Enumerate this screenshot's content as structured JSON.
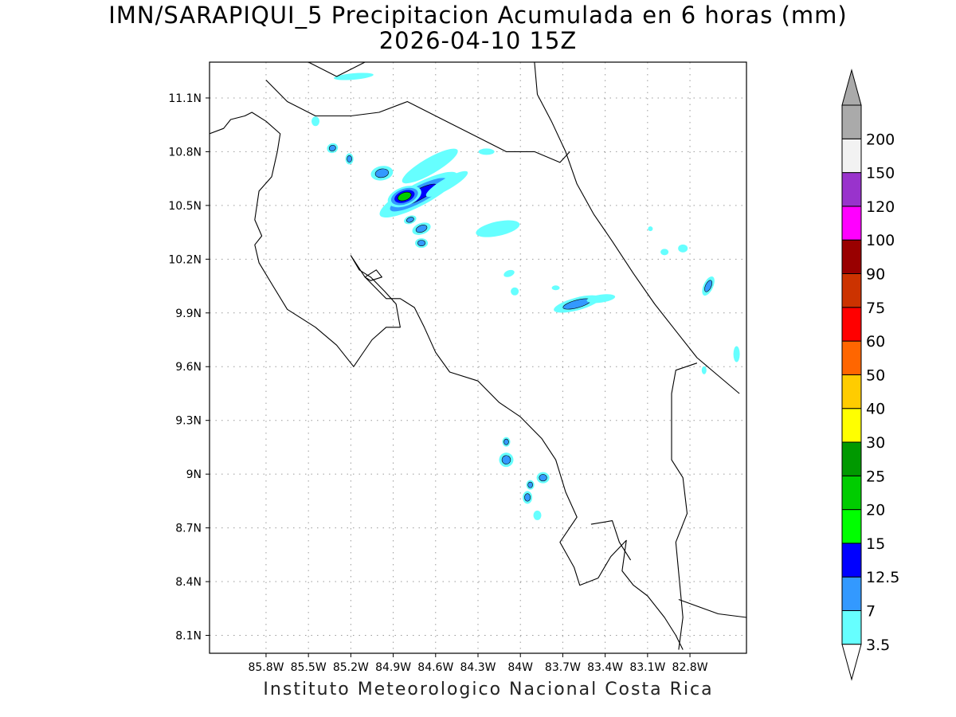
{
  "title": {
    "line1": "IMN/SARAPIQUI_5 Precipitacion Acumulada en 6 horas (mm)",
    "line2": "2026-04-10 15Z"
  },
  "credit": "Instituto Meteorologico Nacional Costa Rica",
  "map": {
    "lon_range": [
      -86.2,
      -82.4
    ],
    "lat_range": [
      8.0,
      11.3
    ],
    "x_ticks": [
      {
        "value": -85.8,
        "label": "85.8W"
      },
      {
        "value": -85.5,
        "label": "85.5W"
      },
      {
        "value": -85.2,
        "label": "85.2W"
      },
      {
        "value": -84.9,
        "label": "84.9W"
      },
      {
        "value": -84.6,
        "label": "84.6W"
      },
      {
        "value": -84.3,
        "label": "84.3W"
      },
      {
        "value": -84.0,
        "label": "84W"
      },
      {
        "value": -83.7,
        "label": "83.7W"
      },
      {
        "value": -83.4,
        "label": "83.4W"
      },
      {
        "value": -83.1,
        "label": "83.1W"
      },
      {
        "value": -82.8,
        "label": "82.8W"
      }
    ],
    "y_ticks": [
      {
        "value": 11.1,
        "label": "11.1N"
      },
      {
        "value": 10.8,
        "label": "10.8N"
      },
      {
        "value": 10.5,
        "label": "10.5N"
      },
      {
        "value": 10.2,
        "label": "10.2N"
      },
      {
        "value": 9.9,
        "label": "9.9N"
      },
      {
        "value": 9.6,
        "label": "9.6N"
      },
      {
        "value": 9.3,
        "label": "9.3N"
      },
      {
        "value": 9.0,
        "label": "9N"
      },
      {
        "value": 8.7,
        "label": "8.7N"
      },
      {
        "value": 8.4,
        "label": "8.4N"
      },
      {
        "value": 8.1,
        "label": "8.1N"
      }
    ],
    "grid": true,
    "coastline": [
      [
        -86.2,
        10.9
      ],
      [
        -86.1,
        10.93
      ],
      [
        -86.05,
        10.98
      ],
      [
        -85.95,
        11.0
      ],
      [
        -85.9,
        11.02
      ],
      [
        -85.8,
        10.97
      ],
      [
        -85.7,
        10.9
      ],
      [
        -85.72,
        10.8
      ],
      [
        -85.76,
        10.66
      ],
      [
        -85.85,
        10.58
      ],
      [
        -85.88,
        10.42
      ],
      [
        -85.83,
        10.33
      ],
      [
        -85.88,
        10.28
      ],
      [
        -85.85,
        10.18
      ],
      [
        -85.75,
        10.05
      ],
      [
        -85.65,
        9.92
      ],
      [
        -85.45,
        9.82
      ],
      [
        -85.3,
        9.72
      ],
      [
        -85.18,
        9.6
      ],
      [
        -85.12,
        9.67
      ],
      [
        -85.05,
        9.75
      ],
      [
        -84.95,
        9.82
      ],
      [
        -84.85,
        9.82
      ],
      [
        -84.88,
        9.95
      ],
      [
        -84.96,
        10.02
      ],
      [
        -85.06,
        10.1
      ],
      [
        -85.14,
        10.14
      ],
      [
        -85.2,
        10.22
      ],
      [
        -85.1,
        10.1
      ],
      [
        -84.95,
        9.98
      ],
      [
        -84.85,
        9.98
      ],
      [
        -84.75,
        9.93
      ],
      [
        -84.68,
        9.82
      ],
      [
        -84.6,
        9.68
      ],
      [
        -84.5,
        9.57
      ],
      [
        -84.3,
        9.52
      ],
      [
        -84.15,
        9.4
      ],
      [
        -84.0,
        9.32
      ],
      [
        -83.85,
        9.2
      ],
      [
        -83.75,
        9.08
      ],
      [
        -83.68,
        8.9
      ],
      [
        -83.6,
        8.76
      ],
      [
        -83.72,
        8.62
      ],
      [
        -83.62,
        8.48
      ],
      [
        -83.58,
        8.38
      ],
      [
        -83.45,
        8.42
      ],
      [
        -83.36,
        8.54
      ],
      [
        -83.25,
        8.63
      ],
      [
        -83.28,
        8.46
      ],
      [
        -83.2,
        8.38
      ],
      [
        -83.1,
        8.32
      ],
      [
        -82.98,
        8.2
      ],
      [
        -82.9,
        8.1
      ],
      [
        -82.85,
        8.02
      ]
    ],
    "border_north": [
      [
        -85.8,
        11.2
      ],
      [
        -85.65,
        11.08
      ],
      [
        -85.45,
        11.0
      ],
      [
        -85.2,
        11.0
      ],
      [
        -85.0,
        11.02
      ],
      [
        -84.8,
        11.08
      ],
      [
        -84.55,
        10.98
      ],
      [
        -84.3,
        10.88
      ],
      [
        -84.1,
        10.8
      ],
      [
        -83.9,
        10.8
      ],
      [
        -83.72,
        10.74
      ],
      [
        -83.65,
        10.8
      ]
    ],
    "lake_shore": [
      [
        -85.5,
        11.3
      ],
      [
        -85.3,
        11.22
      ],
      [
        -85.1,
        11.3
      ]
    ],
    "coast_caribbean": [
      [
        -83.9,
        11.3
      ],
      [
        -83.88,
        11.12
      ],
      [
        -83.78,
        10.97
      ],
      [
        -83.68,
        10.8
      ],
      [
        -83.6,
        10.62
      ],
      [
        -83.48,
        10.45
      ],
      [
        -83.35,
        10.3
      ],
      [
        -83.2,
        10.12
      ],
      [
        -83.05,
        9.95
      ],
      [
        -82.9,
        9.8
      ],
      [
        -82.75,
        9.65
      ],
      [
        -82.6,
        9.55
      ],
      [
        -82.45,
        9.45
      ]
    ],
    "border_south": [
      [
        -82.75,
        9.62
      ],
      [
        -82.9,
        9.58
      ],
      [
        -82.93,
        9.45
      ],
      [
        -82.93,
        9.08
      ],
      [
        -82.85,
        8.98
      ],
      [
        -82.82,
        8.78
      ],
      [
        -82.9,
        8.62
      ],
      [
        -82.88,
        8.45
      ],
      [
        -82.85,
        8.2
      ],
      [
        -82.88,
        8.02
      ]
    ],
    "panama_coast": [
      [
        -82.88,
        8.3
      ],
      [
        -82.6,
        8.22
      ],
      [
        -82.4,
        8.2
      ]
    ],
    "osa_bay": [
      [
        -83.5,
        8.72
      ],
      [
        -83.35,
        8.74
      ],
      [
        -83.3,
        8.62
      ],
      [
        -83.22,
        8.52
      ]
    ],
    "island": [
      [
        -85.1,
        10.1
      ],
      [
        -85.02,
        10.14
      ],
      [
        -84.98,
        10.1
      ],
      [
        -85.06,
        10.08
      ],
      [
        -85.1,
        10.1
      ]
    ],
    "cells": [
      {
        "lon": -84.72,
        "lat": 10.56,
        "rx": 55,
        "ry": 14,
        "angle": -28,
        "levels": [
          3.5,
          7,
          12.5
        ]
      },
      {
        "lon": -84.82,
        "lat": 10.55,
        "rx": 22,
        "ry": 12,
        "angle": -20,
        "levels": [
          3.5,
          7,
          12.5,
          20
        ]
      },
      {
        "lon": -84.64,
        "lat": 10.72,
        "rx": 40,
        "ry": 10,
        "angle": -30,
        "levels": [
          3.5
        ]
      },
      {
        "lon": -84.52,
        "lat": 10.62,
        "rx": 30,
        "ry": 7,
        "angle": -30,
        "levels": [
          3.5
        ]
      },
      {
        "lon": -84.98,
        "lat": 10.68,
        "rx": 14,
        "ry": 9,
        "angle": -10,
        "levels": [
          3.5,
          7
        ]
      },
      {
        "lon": -84.7,
        "lat": 10.37,
        "rx": 12,
        "ry": 7,
        "angle": -20,
        "levels": [
          3.5,
          7
        ]
      },
      {
        "lon": -84.7,
        "lat": 10.29,
        "rx": 8,
        "ry": 6,
        "angle": 0,
        "levels": [
          3.5,
          7
        ]
      },
      {
        "lon": -84.78,
        "lat": 10.42,
        "rx": 8,
        "ry": 5,
        "angle": -20,
        "levels": [
          3.5,
          7
        ]
      },
      {
        "lon": -84.16,
        "lat": 10.37,
        "rx": 28,
        "ry": 9,
        "angle": -12,
        "levels": [
          3.5
        ]
      },
      {
        "lon": -85.21,
        "lat": 10.76,
        "rx": 5,
        "ry": 7,
        "angle": 0,
        "levels": [
          3.5,
          7
        ]
      },
      {
        "lon": -85.33,
        "lat": 10.82,
        "rx": 7,
        "ry": 6,
        "angle": -20,
        "levels": [
          3.5,
          7
        ]
      },
      {
        "lon": -85.45,
        "lat": 10.97,
        "rx": 5,
        "ry": 6,
        "angle": 0,
        "levels": [
          3.5
        ]
      },
      {
        "lon": -85.18,
        "lat": 11.22,
        "rx": 25,
        "ry": 4,
        "angle": -5,
        "levels": [
          3.5
        ]
      },
      {
        "lon": -84.24,
        "lat": 10.8,
        "rx": 10,
        "ry": 4,
        "angle": 0,
        "levels": [
          3.5
        ]
      },
      {
        "lon": -83.6,
        "lat": 9.95,
        "rx": 30,
        "ry": 8,
        "angle": -15,
        "levels": [
          3.5,
          7
        ]
      },
      {
        "lon": -83.43,
        "lat": 9.98,
        "rx": 18,
        "ry": 5,
        "angle": -8,
        "levels": [
          3.5
        ]
      },
      {
        "lon": -83.08,
        "lat": 10.37,
        "rx": 3,
        "ry": 3,
        "angle": 0,
        "levels": [
          3.5
        ]
      },
      {
        "lon": -82.98,
        "lat": 10.24,
        "rx": 5,
        "ry": 4,
        "angle": 0,
        "levels": [
          3.5
        ]
      },
      {
        "lon": -82.85,
        "lat": 10.26,
        "rx": 6,
        "ry": 5,
        "angle": 0,
        "levels": [
          3.5
        ]
      },
      {
        "lon": -82.67,
        "lat": 10.05,
        "rx": 6,
        "ry": 13,
        "angle": 25,
        "levels": [
          3.5,
          7
        ]
      },
      {
        "lon": -82.47,
        "lat": 9.67,
        "rx": 4,
        "ry": 10,
        "angle": 0,
        "levels": [
          3.5
        ]
      },
      {
        "lon": -82.7,
        "lat": 9.58,
        "rx": 3,
        "ry": 5,
        "angle": 0,
        "levels": [
          3.5
        ]
      },
      {
        "lon": -84.08,
        "lat": 10.12,
        "rx": 7,
        "ry": 4,
        "angle": -20,
        "levels": [
          3.5
        ]
      },
      {
        "lon": -84.04,
        "lat": 10.02,
        "rx": 5,
        "ry": 5,
        "angle": 0,
        "levels": [
          3.5
        ]
      },
      {
        "lon": -83.75,
        "lat": 10.04,
        "rx": 5,
        "ry": 3,
        "angle": 0,
        "levels": [
          3.5
        ]
      },
      {
        "lon": -84.1,
        "lat": 9.18,
        "rx": 5,
        "ry": 6,
        "angle": 0,
        "levels": [
          3.5,
          7
        ]
      },
      {
        "lon": -84.1,
        "lat": 9.08,
        "rx": 9,
        "ry": 9,
        "angle": -15,
        "levels": [
          3.5,
          7
        ]
      },
      {
        "lon": -83.93,
        "lat": 8.94,
        "rx": 5,
        "ry": 6,
        "angle": 0,
        "levels": [
          3.5,
          7
        ]
      },
      {
        "lon": -83.95,
        "lat": 8.87,
        "rx": 6,
        "ry": 8,
        "angle": 0,
        "levels": [
          3.5,
          7
        ]
      },
      {
        "lon": -83.84,
        "lat": 8.98,
        "rx": 8,
        "ry": 7,
        "angle": 0,
        "levels": [
          3.5,
          7
        ]
      },
      {
        "lon": -83.88,
        "lat": 8.77,
        "rx": 5,
        "ry": 6,
        "angle": 0,
        "levels": [
          3.5
        ]
      }
    ]
  },
  "legend": {
    "levels": [
      {
        "label": "3.5",
        "color": "#66ffff"
      },
      {
        "label": "7",
        "color": "#3399ff"
      },
      {
        "label": "12.5",
        "color": "#0000ff"
      },
      {
        "label": "15",
        "color": "#00ff00"
      },
      {
        "label": "20",
        "color": "#00cc00"
      },
      {
        "label": "25",
        "color": "#009900"
      },
      {
        "label": "30",
        "color": "#ffff00"
      },
      {
        "label": "40",
        "color": "#ffcc00"
      },
      {
        "label": "50",
        "color": "#ff6600"
      },
      {
        "label": "60",
        "color": "#ff0000"
      },
      {
        "label": "75",
        "color": "#cc3300"
      },
      {
        "label": "90",
        "color": "#990000"
      },
      {
        "label": "100",
        "color": "#ff00ff"
      },
      {
        "label": "120",
        "color": "#9933cc"
      },
      {
        "label": "150",
        "color": "#f2f2f2"
      },
      {
        "label": "200",
        "color": "#aaaaaa"
      }
    ],
    "below_color": "#ffffff",
    "above_color": "#aaaaaa"
  }
}
